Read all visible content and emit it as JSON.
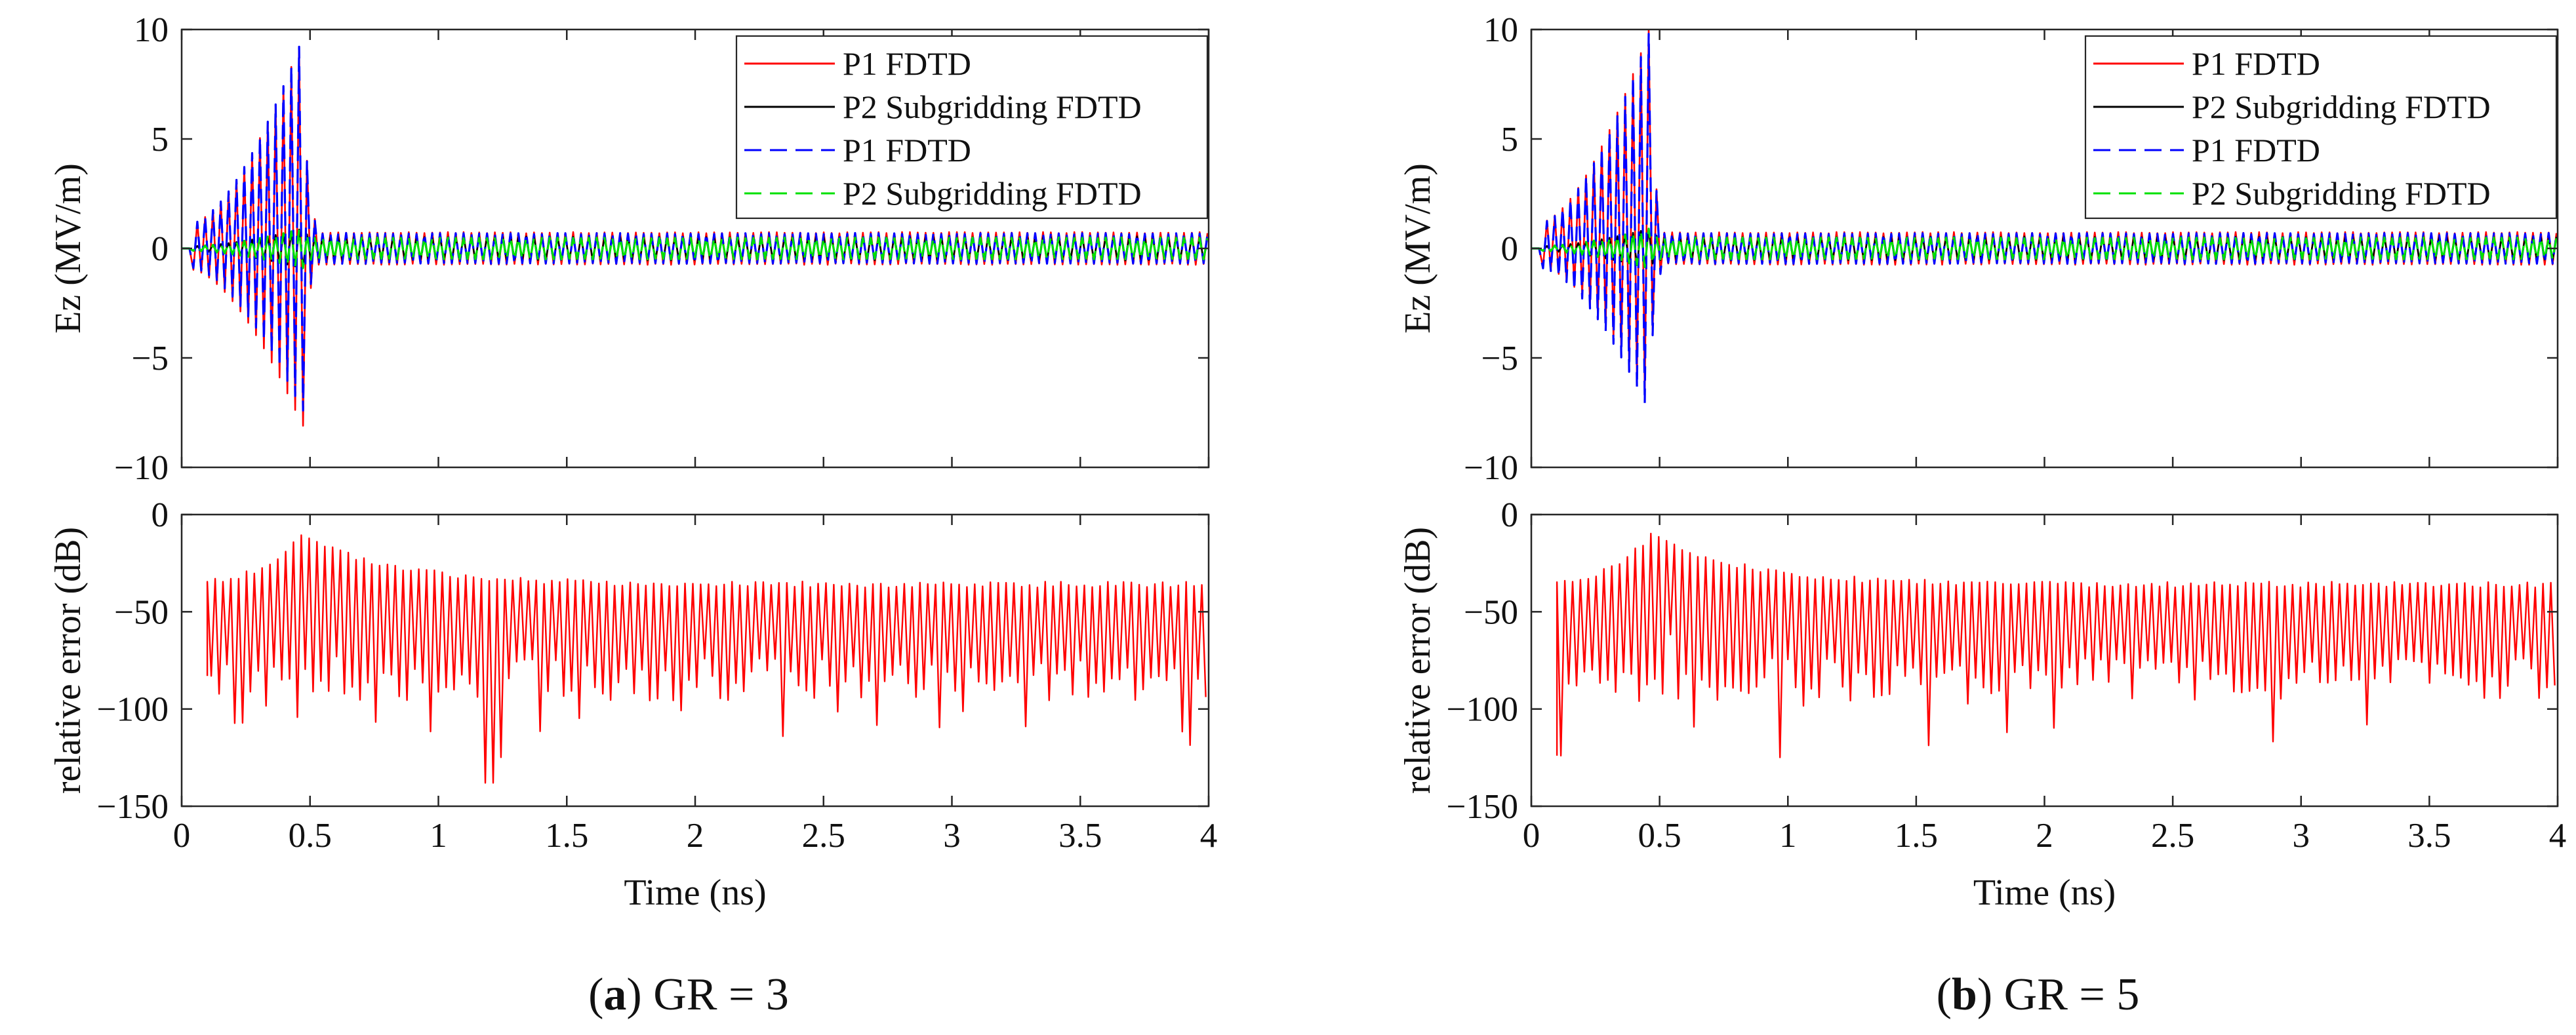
{
  "figure": {
    "panels": [
      {
        "letter": "a",
        "caption_rest": ") GR = 3"
      },
      {
        "letter": "b",
        "caption_rest": ") GR = 5"
      }
    ]
  },
  "colors": {
    "p1_fdtd": "#ff0000",
    "p2_subgridding": "#000000",
    "p1_fdtd_dashed": "#0000ff",
    "p2_subgridding_dashed": "#00e000",
    "error": "#ff0000"
  },
  "chart_data": [
    {
      "panel": "a",
      "subplots": [
        {
          "type": "line",
          "title": "",
          "xlabel": "",
          "ylabel": "Ez (MV/m)",
          "xlim": [
            0,
            4
          ],
          "ylim": [
            -10,
            10
          ],
          "yticks": [
            "−10",
            "−5",
            "0",
            "5",
            "10"
          ],
          "legend": {
            "position": "top-right"
          },
          "series": [
            {
              "name": "P1 FDTD",
              "style": "solid",
              "color": "#ff0000",
              "peak_max": 9.6,
              "peak_min": -8.1,
              "peak_t": 0.47,
              "tail_amp": 0.75
            },
            {
              "name": "P2 Subgridding FDTD",
              "style": "solid",
              "color": "#000000",
              "peak_max": 0.9,
              "peak_min": -0.9,
              "peak_t": 0.47,
              "tail_amp": 0.55
            },
            {
              "name": "P1 FDTD",
              "style": "dashed",
              "color": "#0000ff",
              "peak_max": 9.6,
              "peak_min": -7.4,
              "peak_t": 0.47,
              "tail_amp": 0.7
            },
            {
              "name": "P2 Subgridding FDTD",
              "style": "dashed",
              "color": "#00e000",
              "peak_max": 0.9,
              "peak_min": -0.9,
              "peak_t": 0.47,
              "tail_amp": 0.5
            }
          ]
        },
        {
          "type": "line",
          "title": "",
          "xlabel": "Time (ns)",
          "ylabel": "relative error (dB)",
          "xlim": [
            0,
            4
          ],
          "ylim": [
            -150,
            0
          ],
          "xticks": [
            "0",
            "0.5",
            "1",
            "1.5",
            "2",
            "2.5",
            "3",
            "3.5",
            "4"
          ],
          "yticks": [
            "−150",
            "−100",
            "−50",
            "0"
          ],
          "series": [
            {
              "name": "relative error",
              "color": "#ff0000",
              "t_start": 0.1,
              "upper_level": -36,
              "peak_level": -10,
              "lower_level": -85,
              "min_value": -138,
              "min_t": 1.18
            }
          ]
        }
      ]
    },
    {
      "panel": "b",
      "subplots": [
        {
          "type": "line",
          "title": "",
          "xlabel": "",
          "ylabel": "Ez (MV/m)",
          "xlim": [
            0,
            4
          ],
          "ylim": [
            -10,
            10
          ],
          "yticks": [
            "−10",
            "−5",
            "0",
            "5",
            "10"
          ],
          "legend": {
            "position": "top-right"
          },
          "series": [
            {
              "name": "P1 FDTD",
              "style": "solid",
              "color": "#ff0000",
              "peak_max": 10.0,
              "peak_min": -7.0,
              "peak_t": 0.46,
              "tail_amp": 0.75
            },
            {
              "name": "P2 Subgridding FDTD",
              "style": "solid",
              "color": "#000000",
              "peak_max": 0.9,
              "peak_min": -0.9,
              "peak_t": 0.46,
              "tail_amp": 0.55
            },
            {
              "name": "P1 FDTD",
              "style": "dashed",
              "color": "#0000ff",
              "peak_max": 9.8,
              "peak_min": -7.5,
              "peak_t": 0.46,
              "tail_amp": 0.7
            },
            {
              "name": "P2 Subgridding FDTD",
              "style": "dashed",
              "color": "#00e000",
              "peak_max": 0.9,
              "peak_min": -0.9,
              "peak_t": 0.46,
              "tail_amp": 0.5
            }
          ]
        },
        {
          "type": "line",
          "title": "",
          "xlabel": "Time (ns)",
          "ylabel": "relative error (dB)",
          "xlim": [
            0,
            4
          ],
          "ylim": [
            -150,
            0
          ],
          "xticks": [
            "0",
            "0.5",
            "1",
            "1.5",
            "2",
            "2.5",
            "3",
            "3.5",
            "4"
          ],
          "yticks": [
            "−150",
            "−100",
            "−50",
            "0"
          ],
          "series": [
            {
              "name": "relative error",
              "color": "#ff0000",
              "t_start": 0.1,
              "upper_level": -36,
              "peak_level": -10,
              "lower_level": -85,
              "min_value": -124,
              "min_t": 0.1
            }
          ]
        }
      ]
    }
  ]
}
